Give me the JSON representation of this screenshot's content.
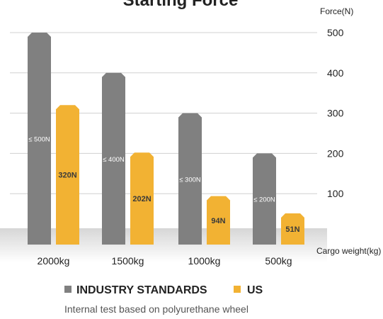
{
  "chart_data": {
    "type": "bar",
    "title": "Starting Force",
    "ylabel": "Force(N)",
    "xlabel": "Cargo weight(kg)",
    "ylim": [
      0,
      500
    ],
    "yticks": [
      100,
      200,
      300,
      400,
      500
    ],
    "grid": true,
    "categories": [
      "2000kg",
      "1500kg",
      "1000kg",
      "500kg"
    ],
    "series": [
      {
        "name": "INDUSTRY STANDARDS",
        "color": "#808080",
        "values": [
          500,
          400,
          300,
          200
        ],
        "labels": [
          "≤ 500N",
          "≤ 400N",
          "≤ 300N",
          "≤ 200N"
        ]
      },
      {
        "name": "US",
        "color": "#F2B233",
        "values": [
          320,
          202,
          94,
          51
        ],
        "labels": [
          "320N",
          "202N",
          "94N",
          "51N"
        ]
      }
    ],
    "legend_position": "bottom",
    "note": "Internal test based on polyurethane wheel"
  }
}
